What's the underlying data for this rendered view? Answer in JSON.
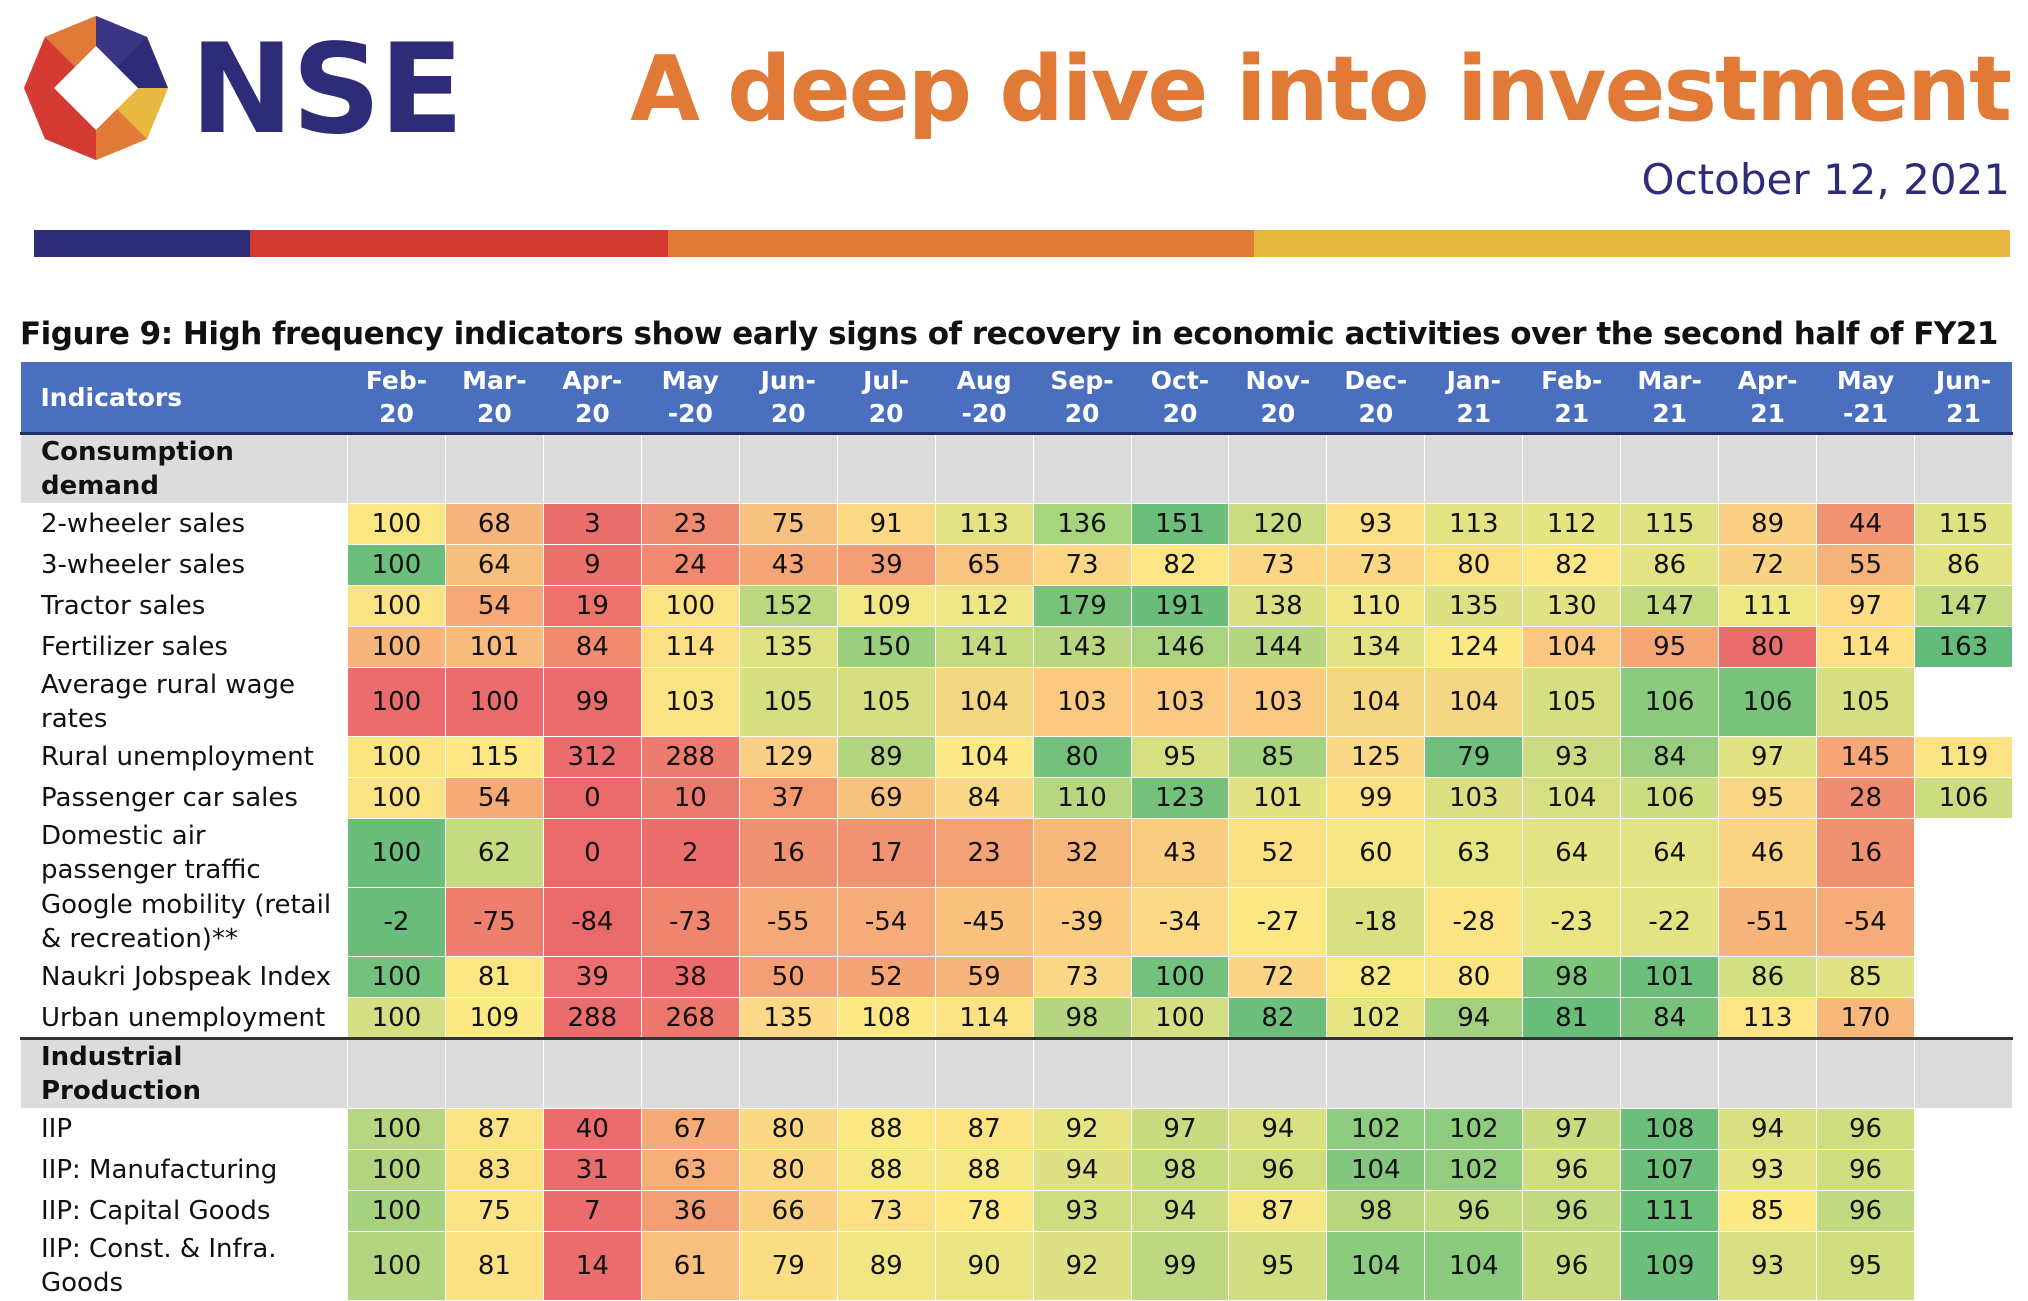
{
  "brand": {
    "name": "NSE"
  },
  "report": {
    "title": "A deep dive into investment",
    "date": "October 12, 2021"
  },
  "colors": {
    "navy": "#2e2c79",
    "red": "#d43a32",
    "orange": "#e07a36",
    "yellow": "#e8b840",
    "header_blue": "#4a6fbf"
  },
  "figure": {
    "title": "Figure 9: High frequency indicators show early signs of recovery in economic activities over the second half of FY21",
    "columns": [
      "Feb-\n20",
      "Mar-\n20",
      "Apr-\n20",
      "May\n-20",
      "Jun-\n20",
      "Jul-\n20",
      "Aug\n-20",
      "Sep-\n20",
      "Oct-\n20",
      "Nov-\n20",
      "Dec-\n20",
      "Jan-\n21",
      "Feb-\n21",
      "Mar-\n21",
      "Apr-\n21",
      "May\n-21",
      "Jun-\n21"
    ],
    "indicator_header": "Indicators",
    "sections": [
      {
        "name": "Consumption demand",
        "rows": [
          {
            "label": "2-wheeler sales",
            "values": [
              "100",
              "68",
              "3",
              "23",
              "75",
              "91",
              "113",
              "136",
              "151",
              "120",
              "93",
              "113",
              "112",
              "115",
              "89",
              "44",
              "115"
            ],
            "colors": [
              "#fbe683",
              "#f6b47d",
              "#ea6e6c",
              "#ef8a72",
              "#f7c17f",
              "#fbd985",
              "#e4e383",
              "#a6d47f",
              "#6dbe7b",
              "#c9dc81",
              "#fcdf85",
              "#e4e383",
              "#e5e483",
              "#dfe283",
              "#fad185",
              "#f19474",
              "#dfe283"
            ]
          },
          {
            "label": "3-wheeler sales",
            "values": [
              "100",
              "64",
              "9",
              "24",
              "43",
              "39",
              "65",
              "73",
              "82",
              "73",
              "73",
              "80",
              "82",
              "86",
              "72",
              "55",
              "86"
            ],
            "colors": [
              "#6cbe7b",
              "#f7bf7e",
              "#eb726c",
              "#f0896f",
              "#f4a676",
              "#f39e74",
              "#f8c47f",
              "#fad685",
              "#fbe585",
              "#fad685",
              "#fad685",
              "#fbe083",
              "#fbe585",
              "#e4e383",
              "#f9d383",
              "#f6b27b",
              "#e4e383"
            ]
          },
          {
            "label": "Tractor sales",
            "values": [
              "100",
              "54",
              "19",
              "100",
              "152",
              "109",
              "112",
              "179",
              "191",
              "138",
              "110",
              "135",
              "130",
              "147",
              "111",
              "97",
              "147"
            ],
            "colors": [
              "#fbe283",
              "#f6a876",
              "#eb736c",
              "#fbe283",
              "#bbd881",
              "#f3e684",
              "#eee584",
              "#79c27c",
              "#6abd7b",
              "#d8e082",
              "#f1e684",
              "#dde183",
              "#e1e283",
              "#c4da81",
              "#efe684",
              "#fbdc84",
              "#c4da81"
            ]
          },
          {
            "label": "Fertilizer sales",
            "values": [
              "100",
              "101",
              "84",
              "114",
              "135",
              "150",
              "141",
              "143",
              "146",
              "144",
              "134",
              "124",
              "104",
              "95",
              "80",
              "114",
              "163"
            ],
            "colors": [
              "#f7b57c",
              "#f8bb7e",
              "#f18b70",
              "#fcdf84",
              "#dee283",
              "#9acf7f",
              "#c4da81",
              "#b9d780",
              "#abd37f",
              "#b5d680",
              "#e4e383",
              "#fbe983",
              "#fac680",
              "#f5a677",
              "#eb6c6c",
              "#fcdf84",
              "#63bb7b"
            ]
          },
          {
            "label": "Average rural wage rates",
            "values": [
              "100",
              "100",
              "99",
              "103",
              "105",
              "105",
              "104",
              "103",
              "103",
              "103",
              "104",
              "104",
              "105",
              "106",
              "106",
              "105",
              ""
            ],
            "colors": [
              "#ea6c6c",
              "#ea6c6c",
              "#ea6c6c",
              "#fbe283",
              "#d5df82",
              "#d5df82",
              "#f5d683",
              "#fbc981",
              "#fbc981",
              "#fbc981",
              "#f5d683",
              "#f5d683",
              "#d5df82",
              "#8bcb7e",
              "#78c37c",
              "#d5df82",
              "#ffffff"
            ],
            "tall": true
          },
          {
            "label": "Rural unemployment",
            "values": [
              "100",
              "115",
              "312",
              "288",
              "129",
              "89",
              "104",
              "80",
              "95",
              "85",
              "125",
              "79",
              "93",
              "84",
              "97",
              "145",
              "119"
            ],
            "colors": [
              "#fbe583",
              "#fde885",
              "#ea6c6c",
              "#ed7b6e",
              "#fad086",
              "#b4d580",
              "#fde887",
              "#73c17c",
              "#d6df82",
              "#a5d27f",
              "#fbd886",
              "#70bf7c",
              "#cadb81",
              "#98cd7f",
              "#e1e283",
              "#f6a677",
              "#fbe284"
            ]
          },
          {
            "label": "Passenger car sales",
            "values": [
              "100",
              "54",
              "0",
              "10",
              "37",
              "69",
              "84",
              "110",
              "123",
              "101",
              "99",
              "103",
              "104",
              "106",
              "95",
              "28",
              "106"
            ],
            "colors": [
              "#fbe283",
              "#f6ab77",
              "#ea6a6c",
              "#ec796d",
              "#f39a73",
              "#f8c37f",
              "#fbd884",
              "#b6d680",
              "#75c17c",
              "#e2e283",
              "#fbe183",
              "#dae082",
              "#d6df82",
              "#cbdc81",
              "#fad784",
              "#f08c71",
              "#cbdc81"
            ]
          },
          {
            "label": "Domestic air passenger traffic",
            "values": [
              "100",
              "62",
              "0",
              "2",
              "16",
              "17",
              "23",
              "32",
              "43",
              "52",
              "60",
              "63",
              "64",
              "64",
              "46",
              "16",
              ""
            ],
            "colors": [
              "#6abd7b",
              "#c6da81",
              "#ea6a6c",
              "#eb6d6c",
              "#f09272",
              "#f09372",
              "#f2a274",
              "#f6b77b",
              "#f9cd80",
              "#fbe083",
              "#f5e684",
              "#e8e583",
              "#e4e383",
              "#e4e383",
              "#fbd482",
              "#f09272",
              "#ffffff"
            ],
            "tall": true
          },
          {
            "label": "Google mobility (retail & recreation)**",
            "values": [
              "-2",
              "-75",
              "-84",
              "-73",
              "-55",
              "-54",
              "-45",
              "-39",
              "-34",
              "-27",
              "-18",
              "-28",
              "-23",
              "-22",
              "-51",
              "-54",
              ""
            ],
            "colors": [
              "#6abd7b",
              "#ee7f6e",
              "#ea6a6c",
              "#ef856f",
              "#f5a978",
              "#f6ac79",
              "#f9c07e",
              "#facc81",
              "#fbd985",
              "#fbe784",
              "#d8e082",
              "#fbe484",
              "#e9e484",
              "#e3e383",
              "#f8b57b",
              "#f6ac79",
              "#ffffff"
            ],
            "tall": true
          },
          {
            "label": "Naukri Jobspeak Index",
            "values": [
              "100",
              "81",
              "39",
              "38",
              "50",
              "52",
              "59",
              "73",
              "100",
              "72",
              "82",
              "80",
              "98",
              "101",
              "86",
              "85",
              ""
            ],
            "colors": [
              "#72c17c",
              "#fbe683",
              "#ec7170",
              "#ea6c6c",
              "#f39e74",
              "#f4a576",
              "#f6b67b",
              "#fbd885",
              "#72c17c",
              "#fbd584",
              "#f8e884",
              "#fbe484",
              "#7ec57c",
              "#6cbe7b",
              "#d2df82",
              "#e0e283",
              "#ffffff"
            ]
          },
          {
            "label": "Urban unemployment",
            "values": [
              "100",
              "109",
              "288",
              "268",
              "135",
              "108",
              "114",
              "98",
              "100",
              "82",
              "102",
              "94",
              "81",
              "84",
              "113",
              "170",
              ""
            ],
            "colors": [
              "#d3df82",
              "#fbe984",
              "#ea6c6c",
              "#ec776d",
              "#fbd986",
              "#fde886",
              "#fbe385",
              "#b5d580",
              "#d3df82",
              "#6cbe7b",
              "#e6e483",
              "#a4d17f",
              "#69bd7b",
              "#78c27c",
              "#fde486",
              "#f8b87c",
              "#ffffff"
            ]
          }
        ]
      },
      {
        "name": "Industrial Production",
        "rows": [
          {
            "label": "IIP",
            "values": [
              "100",
              "87",
              "40",
              "67",
              "80",
              "88",
              "87",
              "92",
              "97",
              "94",
              "102",
              "102",
              "97",
              "108",
              "94",
              "96",
              ""
            ],
            "colors": [
              "#b6d680",
              "#fbe283",
              "#ea6c6c",
              "#f5ab77",
              "#fbd884",
              "#f9e884",
              "#fbe283",
              "#e6e483",
              "#c8db81",
              "#d8e082",
              "#8dcb7e",
              "#8dcb7e",
              "#c8db81",
              "#6cbe7b",
              "#d8e082",
              "#cfdd81",
              "#ffffff"
            ]
          },
          {
            "label": "IIP: Manufacturing",
            "values": [
              "100",
              "83",
              "31",
              "63",
              "80",
              "88",
              "88",
              "94",
              "98",
              "96",
              "104",
              "102",
              "96",
              "107",
              "93",
              "96",
              ""
            ],
            "colors": [
              "#b3d580",
              "#fbdf83",
              "#ea6c6c",
              "#f6af79",
              "#fbd784",
              "#f4e784",
              "#f4e784",
              "#dde183",
              "#c4da81",
              "#cfdd81",
              "#82c77d",
              "#92cd7e",
              "#cfdd81",
              "#6cbe7b",
              "#e3e383",
              "#cfdd81",
              "#ffffff"
            ]
          },
          {
            "label": "IIP: Capital Goods",
            "values": [
              "100",
              "75",
              "7",
              "36",
              "66",
              "73",
              "78",
              "93",
              "94",
              "87",
              "98",
              "96",
              "96",
              "111",
              "85",
              "96",
              ""
            ],
            "colors": [
              "#a6d27f",
              "#fbe383",
              "#ea6c6c",
              "#f29e74",
              "#f9d081",
              "#fbe083",
              "#fbe883",
              "#cfdd81",
              "#c9dc81",
              "#f4e784",
              "#b8d680",
              "#c1d981",
              "#c1d981",
              "#6cbe7b",
              "#fbe983",
              "#c1d981",
              "#ffffff"
            ]
          },
          {
            "label": "IIP: Const. & Infra. Goods",
            "values": [
              "100",
              "81",
              "14",
              "61",
              "79",
              "89",
              "90",
              "92",
              "99",
              "95",
              "104",
              "104",
              "96",
              "109",
              "93",
              "95",
              ""
            ],
            "colors": [
              "#b3d580",
              "#fbe183",
              "#ea6c6c",
              "#f8bf7e",
              "#fbdd83",
              "#f0e684",
              "#ebe584",
              "#dde183",
              "#bdd881",
              "#d0dd81",
              "#8acb7e",
              "#8acb7e",
              "#c8db81",
              "#6cbe7b",
              "#d7df82",
              "#d0dd81",
              "#ffffff"
            ],
            "tall": true
          }
        ]
      }
    ]
  }
}
